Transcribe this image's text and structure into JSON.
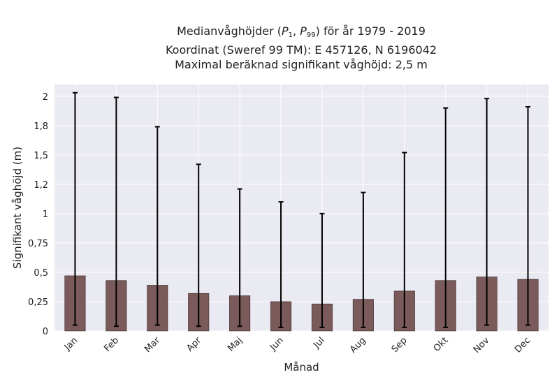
{
  "chart_data": {
    "type": "bar",
    "title": {
      "line1_prefix": "Medianvåghöjder (",
      "p_symbol": "P",
      "p1_sub": "1",
      "comma": ", ",
      "p99_sub": "99",
      "line1_suffix": ") för år 1979 - 2019",
      "line2": "Koordinat (Sweref 99 TM): E 457126, N 6196042",
      "line3": "Maximal beräknad signifikant våghöjd: 2,5 m"
    },
    "xlabel": "Månad",
    "ylabel": "Signifikant våghöjd (m)",
    "ylim": [
      0,
      2.1
    ],
    "yticks": [
      0,
      0.25,
      0.5,
      0.75,
      1,
      1.25,
      1.5,
      1.75,
      2
    ],
    "ytick_labels": [
      "0",
      "0,25",
      "0,5",
      "0,75",
      "1",
      "1,2",
      "1,5",
      "1,8",
      "2"
    ],
    "categories": [
      "Jan",
      "Feb",
      "Mar",
      "Apr",
      "Maj",
      "Jun",
      "Jul",
      "Aug",
      "Sep",
      "Okt",
      "Nov",
      "Dec"
    ],
    "values": [
      0.47,
      0.43,
      0.39,
      0.32,
      0.3,
      0.25,
      0.23,
      0.27,
      0.34,
      0.43,
      0.46,
      0.44
    ],
    "error_low": [
      0.05,
      0.04,
      0.05,
      0.04,
      0.04,
      0.03,
      0.03,
      0.03,
      0.03,
      0.03,
      0.05,
      0.05
    ],
    "error_high": [
      2.03,
      1.99,
      1.74,
      1.42,
      1.21,
      1.1,
      1.0,
      1.18,
      1.52,
      1.9,
      1.98,
      1.91
    ],
    "grid": true,
    "bar_color": "#7a5a5a",
    "plot_background": "#eaeaf2"
  }
}
